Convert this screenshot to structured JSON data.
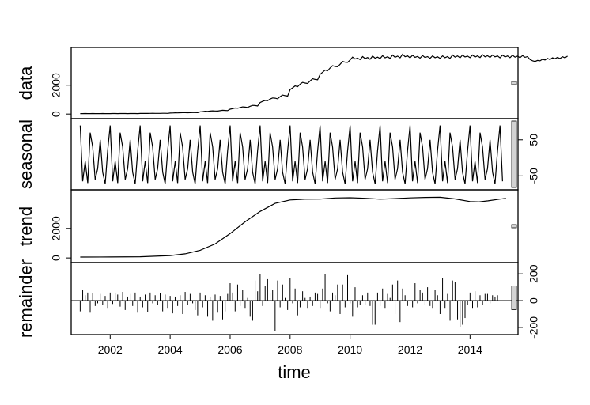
{
  "chart_data": {
    "type": "line",
    "title": "",
    "xlabel": "time",
    "xlim": [
      2000.7,
      2015.6
    ],
    "x_ticks": [
      "2002",
      "2004",
      "2006",
      "2008",
      "2010",
      "2012",
      "2014"
    ],
    "time_start": 2001.0,
    "frequency": 12,
    "panels": [
      {
        "name": "data",
        "ylim": [
          -100,
          4400
        ],
        "ticks": [
          "0",
          "2000"
        ],
        "tick_side": "left",
        "values": [
          30,
          32,
          35,
          31,
          33,
          36,
          34,
          30,
          32,
          35,
          33,
          31,
          33,
          35,
          38,
          34,
          36,
          39,
          37,
          33,
          35,
          38,
          36,
          34,
          40,
          44,
          49,
          45,
          48,
          53,
          50,
          46,
          49,
          53,
          51,
          48,
          70,
          78,
          88,
          82,
          90,
          98,
          95,
          90,
          96,
          105,
          102,
          98,
          150,
          170,
          195,
          185,
          205,
          225,
          215,
          205,
          235,
          260,
          250,
          240,
          340,
          380,
          420,
          405,
          450,
          500,
          480,
          460,
          540,
          600,
          590,
          560,
          800,
          880,
          950,
          930,
          1040,
          1120,
          1100,
          1060,
          1210,
          1320,
          1280,
          1250,
          1700,
          1820,
          1950,
          1900,
          2080,
          2200,
          2150,
          2120,
          2300,
          2450,
          2400,
          2380,
          2750,
          2900,
          3050,
          3000,
          3200,
          3350,
          3300,
          3280,
          3450,
          3650,
          3600,
          3580,
          3750,
          3950,
          3820,
          3880,
          3780,
          3990,
          3850,
          3920,
          3800,
          4020,
          3880,
          3950,
          3850,
          4050,
          3900,
          3980,
          3860,
          4100,
          3940,
          4020,
          3900,
          4150,
          3980,
          4040,
          3900,
          4080,
          3940,
          4000,
          3880,
          4060,
          3920,
          3990,
          3870,
          4040,
          3910,
          3980,
          3870,
          4040,
          3910,
          3990,
          3860,
          4100,
          3950,
          4030,
          3900,
          4090,
          3960,
          4020,
          3910,
          4100,
          3950,
          4040,
          3920,
          4120,
          3970,
          4050,
          3930,
          4100,
          3970,
          4030,
          3900,
          4090,
          3960,
          4030,
          3910,
          4080,
          3950,
          4020,
          3910,
          4060,
          3940,
          3990,
          3780,
          3700,
          3650,
          3720,
          3690,
          3800,
          3750,
          3860,
          3780,
          3900,
          3840,
          3930,
          3850,
          3980,
          3900,
          4020
        ]
      },
      {
        "name": "seasonal",
        "ylim": [
          -80,
          100
        ],
        "ticks": [
          "-50",
          "50"
        ],
        "tick_side": "right",
        "values": [
          90,
          -65,
          -10,
          -70,
          70,
          30,
          -60,
          -30,
          50,
          -40,
          -72,
          20
        ]
      },
      {
        "name": "trend",
        "ylim": [
          -100,
          4400
        ],
        "ticks": [
          "0",
          "2000"
        ],
        "tick_side": "left",
        "x": [
          2001.0,
          2002.0,
          2003.0,
          2004.0,
          2004.5,
          2005.0,
          2005.5,
          2006.0,
          2006.5,
          2007.0,
          2007.5,
          2008.0,
          2008.5,
          2009.0,
          2009.5,
          2010.0,
          2010.5,
          2011.0,
          2011.5,
          2012.0,
          2012.5,
          2013.0,
          2013.5,
          2014.0,
          2014.3,
          2014.6,
          2015.0,
          2015.2
        ],
        "y": [
          60,
          65,
          80,
          160,
          280,
          520,
          950,
          1650,
          2450,
          3150,
          3700,
          3930,
          3980,
          3990,
          4060,
          4080,
          4040,
          3980,
          4020,
          4070,
          4100,
          4110,
          4000,
          3820,
          3800,
          3870,
          3990,
          4030
        ]
      },
      {
        "name": "remainder",
        "ylim": [
          -230,
          260
        ],
        "ticks": [
          "-200",
          "0",
          "200"
        ],
        "tick_side": "right",
        "style": "bars",
        "values": [
          -80,
          80,
          40,
          60,
          -90,
          55,
          -40,
          -20,
          50,
          -30,
          35,
          -60,
          60,
          -25,
          60,
          45,
          -45,
          65,
          -70,
          30,
          50,
          -40,
          60,
          -90,
          30,
          -50,
          45,
          -85,
          60,
          -20,
          40,
          -35,
          55,
          -80,
          45,
          -60,
          35,
          -95,
          30,
          -40,
          40,
          -100,
          65,
          -30,
          50,
          -20,
          -70,
          -110,
          60,
          -50,
          40,
          -120,
          30,
          -150,
          45,
          -90,
          35,
          -140,
          -80,
          50,
          130,
          60,
          -80,
          120,
          -40,
          80,
          -60,
          20,
          -120,
          -150,
          150,
          70,
          200,
          -40,
          110,
          160,
          60,
          80,
          -230,
          150,
          -50,
          120,
          20,
          -70,
          170,
          -20,
          90,
          -110,
          -50,
          70,
          20,
          -60,
          30,
          -40,
          60,
          50,
          -60,
          90,
          200,
          -20,
          -80,
          60,
          40,
          120,
          -100,
          120,
          -50,
          190,
          -20,
          -120,
          100,
          -50,
          -30,
          40,
          -30,
          60,
          -40,
          -180,
          -180,
          60,
          -40,
          90,
          -60,
          50,
          20,
          120,
          -100,
          150,
          -160,
          90,
          40,
          -40,
          60,
          -50,
          130,
          -20,
          80,
          60,
          -30,
          100,
          -40,
          -60,
          80,
          40,
          -100,
          170,
          -60,
          50,
          -150,
          150,
          140,
          -140,
          -200,
          -180,
          -130,
          -30,
          60,
          -60,
          70,
          -50,
          40,
          -30,
          50,
          50,
          -20,
          40,
          30,
          40
        ]
      }
    ]
  }
}
